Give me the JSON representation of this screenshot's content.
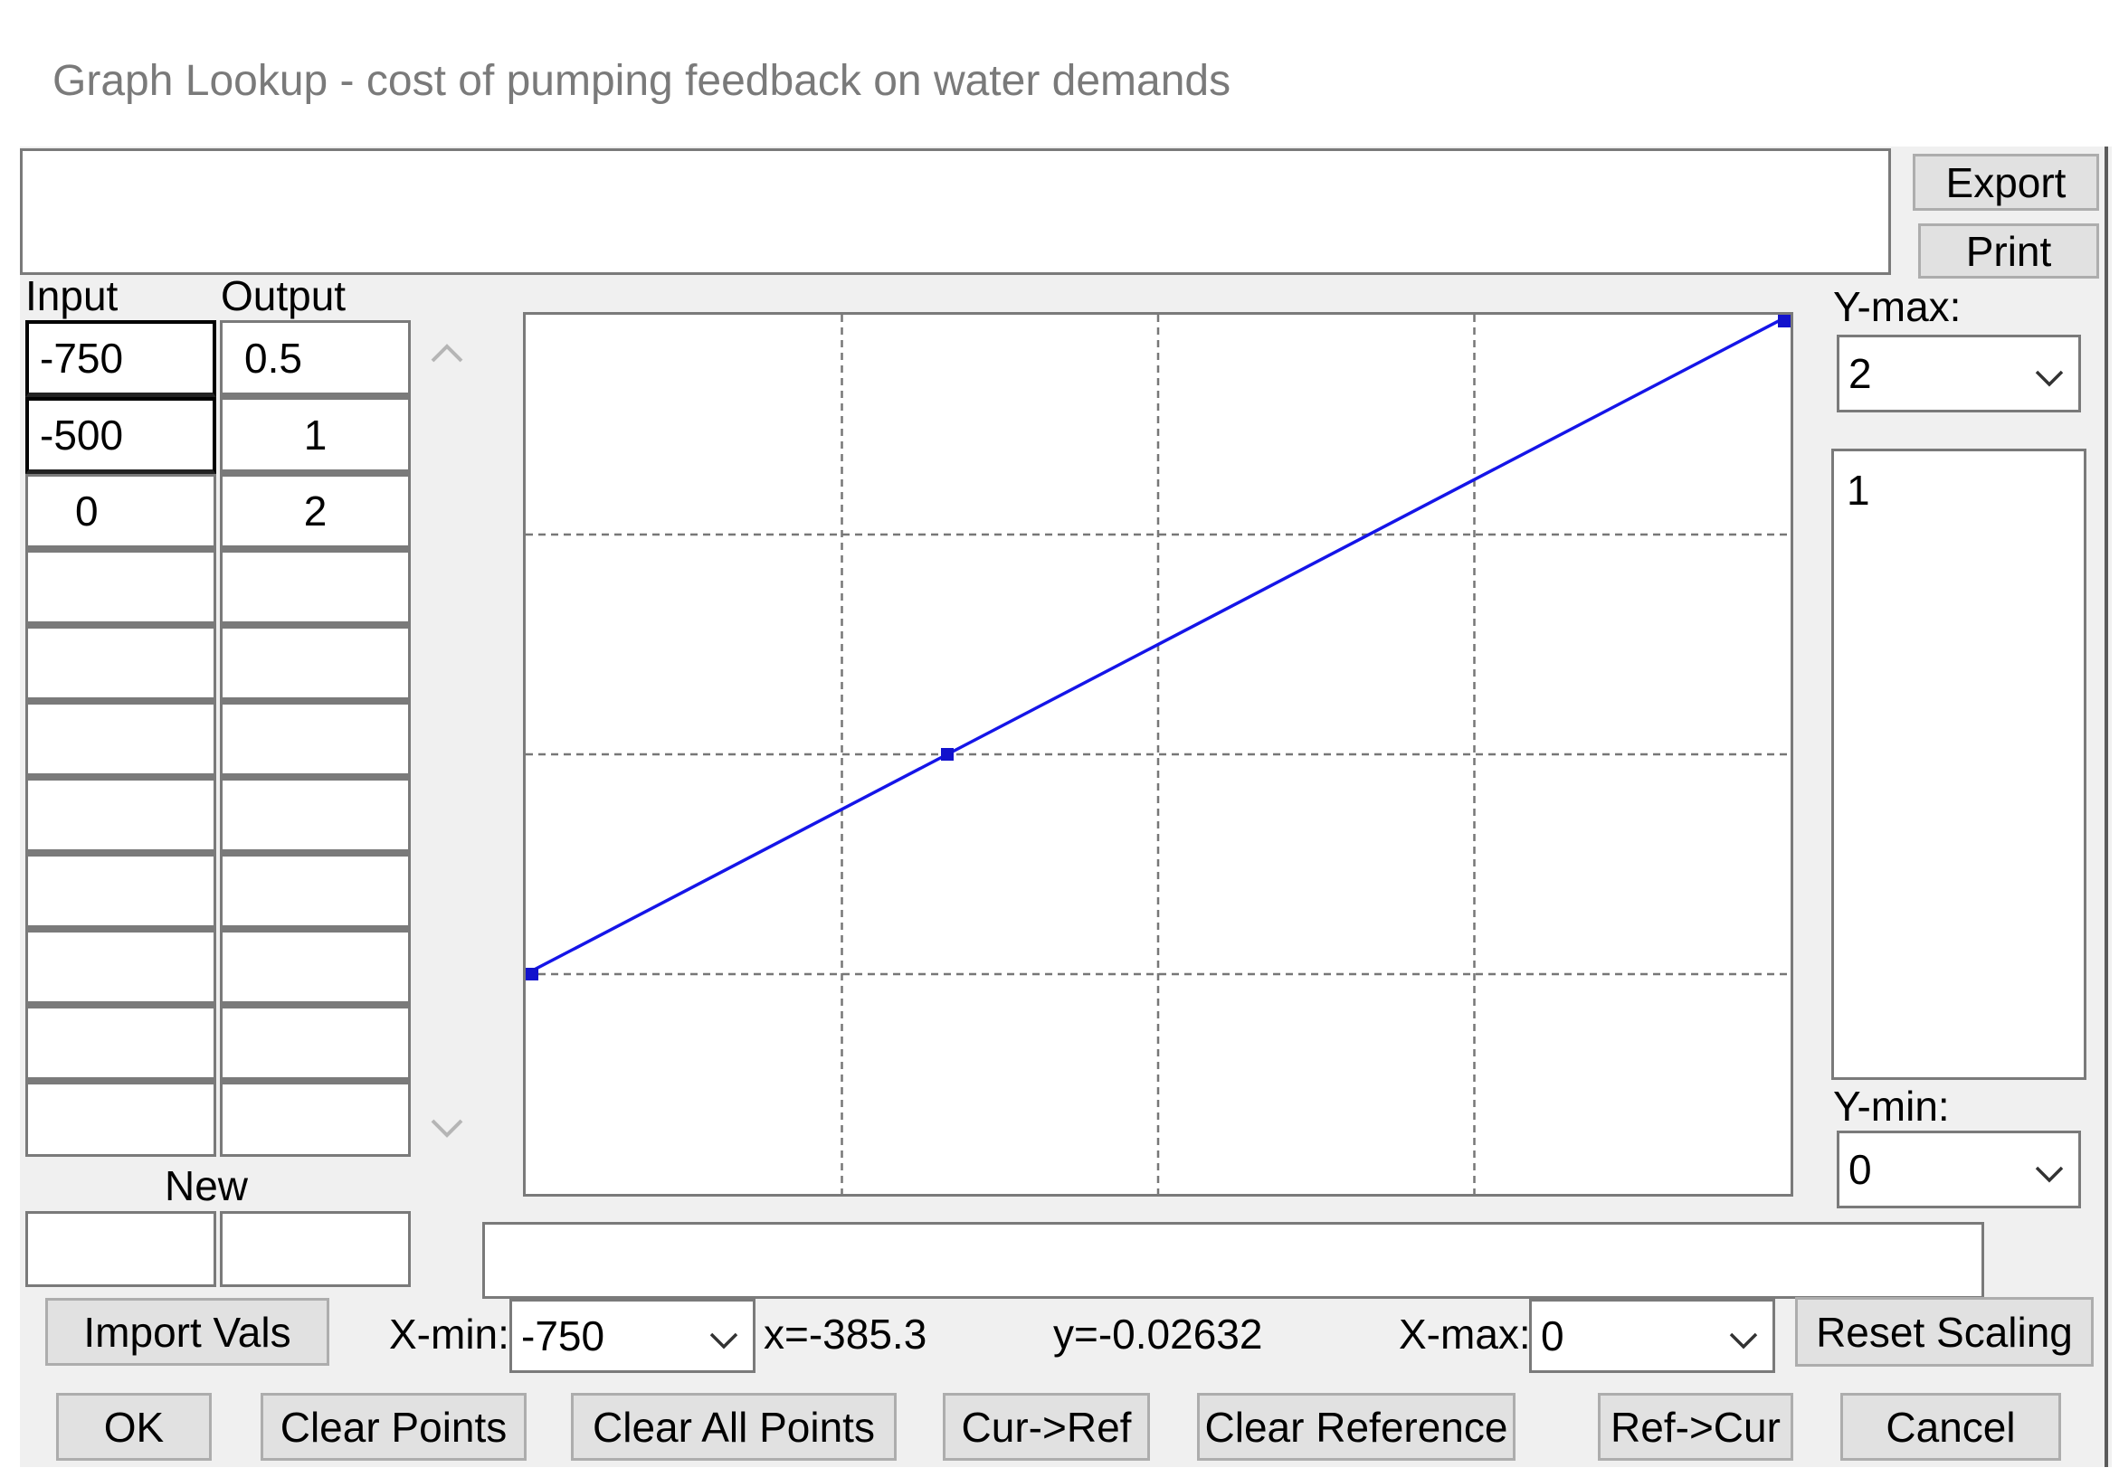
{
  "window": {
    "title": "Graph Lookup - cost of pumping feedback on water demands"
  },
  "top_buttons": {
    "export_label": "Export",
    "print_label": "Print"
  },
  "table": {
    "input_header": "Input",
    "output_header": "Output",
    "rows": [
      {
        "input": "-750",
        "output": "0.5"
      },
      {
        "input": "-500",
        "output": "1"
      },
      {
        "input": "0",
        "output": "2"
      },
      {
        "input": "",
        "output": ""
      },
      {
        "input": "",
        "output": ""
      },
      {
        "input": "",
        "output": ""
      },
      {
        "input": "",
        "output": ""
      },
      {
        "input": "",
        "output": ""
      },
      {
        "input": "",
        "output": ""
      },
      {
        "input": "",
        "output": ""
      },
      {
        "input": "",
        "output": ""
      }
    ],
    "new_label": "New",
    "new_input_value": "",
    "new_output_value": ""
  },
  "chart_data": {
    "type": "line",
    "x": [
      -750,
      -500,
      0
    ],
    "y": [
      0.5,
      1,
      2
    ],
    "xlim": [
      -750,
      0
    ],
    "ylim": [
      0,
      2
    ],
    "grid": true,
    "grid_style": "dashed",
    "line_color": "#1515e8",
    "point_color": "#1212cc"
  },
  "y_scale": {
    "ymax_label": "Y-max:",
    "ymax_value": "2",
    "ymid_value": "1",
    "ymin_label": "Y-min:",
    "ymin_value": "0"
  },
  "x_scale": {
    "xmin_label": "X-min:",
    "xmin_value": "-750",
    "xmax_label": "X-max:",
    "xmax_value": "0"
  },
  "cursor": {
    "x_readout": "x=-385.3",
    "y_readout": "y=-0.02632"
  },
  "buttons": {
    "import_vals": "Import Vals",
    "reset_scaling": "Reset Scaling",
    "ok": "OK",
    "clear_points": "Clear Points",
    "clear_all_points": "Clear All Points",
    "cur_to_ref": "Cur->Ref",
    "clear_reference": "Clear Reference",
    "ref_to_cur": "Ref->Cur",
    "cancel": "Cancel"
  }
}
